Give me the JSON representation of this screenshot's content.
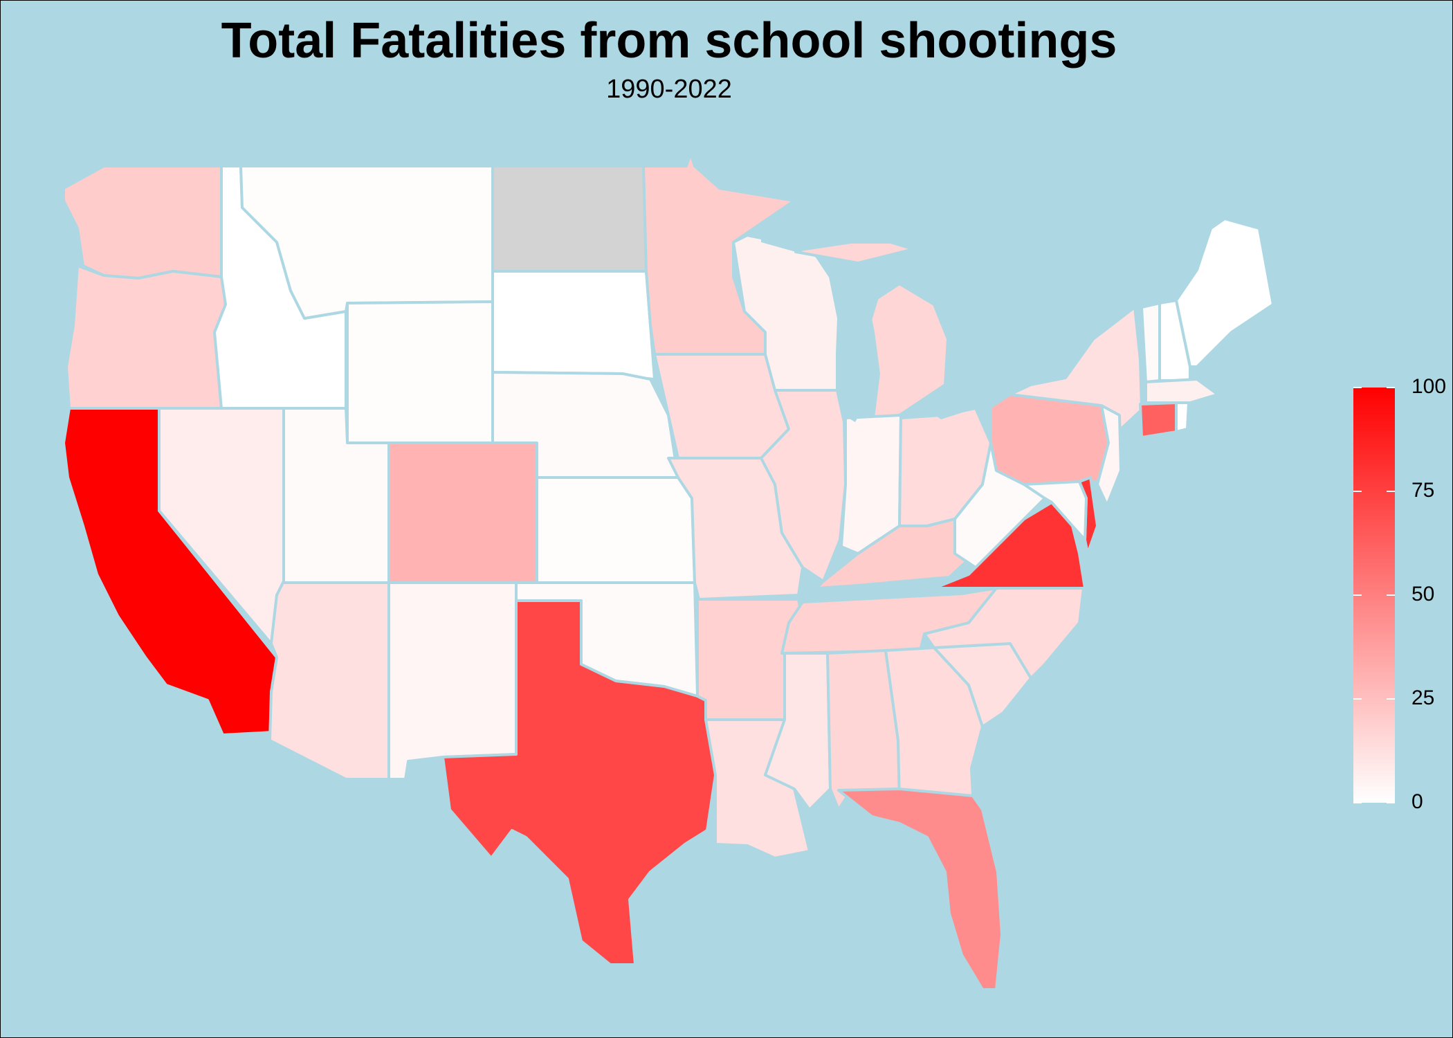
{
  "title": "Total Fatalities from school shootings",
  "subtitle": "1990-2022",
  "colors": {
    "background": "#add8e3",
    "low": "#ffffff",
    "high": "#ff0000",
    "missing": "#d3d3d3",
    "border": "#add8e3"
  },
  "legend": {
    "min": 0,
    "max": 100,
    "ticks": [
      "100",
      "75",
      "50",
      "25",
      "0"
    ],
    "tick_values": [
      100,
      75,
      50,
      25,
      0
    ]
  },
  "chart_data": {
    "type": "choropleth",
    "title": "Total Fatalities from school shootings",
    "subtitle": "1990-2022",
    "value_range": [
      0,
      100
    ],
    "states": [
      {
        "name": "WA",
        "value": 20
      },
      {
        "name": "OR",
        "value": 18
      },
      {
        "name": "CA",
        "value": 102
      },
      {
        "name": "ID",
        "value": 0
      },
      {
        "name": "NV",
        "value": 7
      },
      {
        "name": "MT",
        "value": 1
      },
      {
        "name": "WY",
        "value": 1
      },
      {
        "name": "UT",
        "value": 2
      },
      {
        "name": "AZ",
        "value": 12
      },
      {
        "name": "CO",
        "value": 30
      },
      {
        "name": "NM",
        "value": 4
      },
      {
        "name": "ND",
        "value": null
      },
      {
        "name": "SD",
        "value": 0
      },
      {
        "name": "NE",
        "value": 2
      },
      {
        "name": "KS",
        "value": 1
      },
      {
        "name": "OK",
        "value": 2
      },
      {
        "name": "TX",
        "value": 72
      },
      {
        "name": "MN",
        "value": 20
      },
      {
        "name": "IA",
        "value": 14
      },
      {
        "name": "MO",
        "value": 12
      },
      {
        "name": "AR",
        "value": 18
      },
      {
        "name": "LA",
        "value": 12
      },
      {
        "name": "WI",
        "value": 6
      },
      {
        "name": "IL",
        "value": 14
      },
      {
        "name": "MI",
        "value": 16
      },
      {
        "name": "IN",
        "value": 4
      },
      {
        "name": "OH",
        "value": 14
      },
      {
        "name": "KY",
        "value": 20
      },
      {
        "name": "TN",
        "value": 18
      },
      {
        "name": "MS",
        "value": 10
      },
      {
        "name": "AL",
        "value": 16
      },
      {
        "name": "GA",
        "value": 14
      },
      {
        "name": "FL",
        "value": 45
      },
      {
        "name": "SC",
        "value": 12
      },
      {
        "name": "NC",
        "value": 14
      },
      {
        "name": "VA",
        "value": 80
      },
      {
        "name": "WV",
        "value": 2
      },
      {
        "name": "PA",
        "value": 30
      },
      {
        "name": "NY",
        "value": 12
      },
      {
        "name": "VT",
        "value": 2
      },
      {
        "name": "NH",
        "value": 0
      },
      {
        "name": "ME",
        "value": 0
      },
      {
        "name": "MA",
        "value": 6
      },
      {
        "name": "CT",
        "value": 62
      },
      {
        "name": "RI",
        "value": 0
      },
      {
        "name": "NJ",
        "value": 4
      },
      {
        "name": "DE",
        "value": 80
      },
      {
        "name": "MD",
        "value": 2
      }
    ]
  }
}
